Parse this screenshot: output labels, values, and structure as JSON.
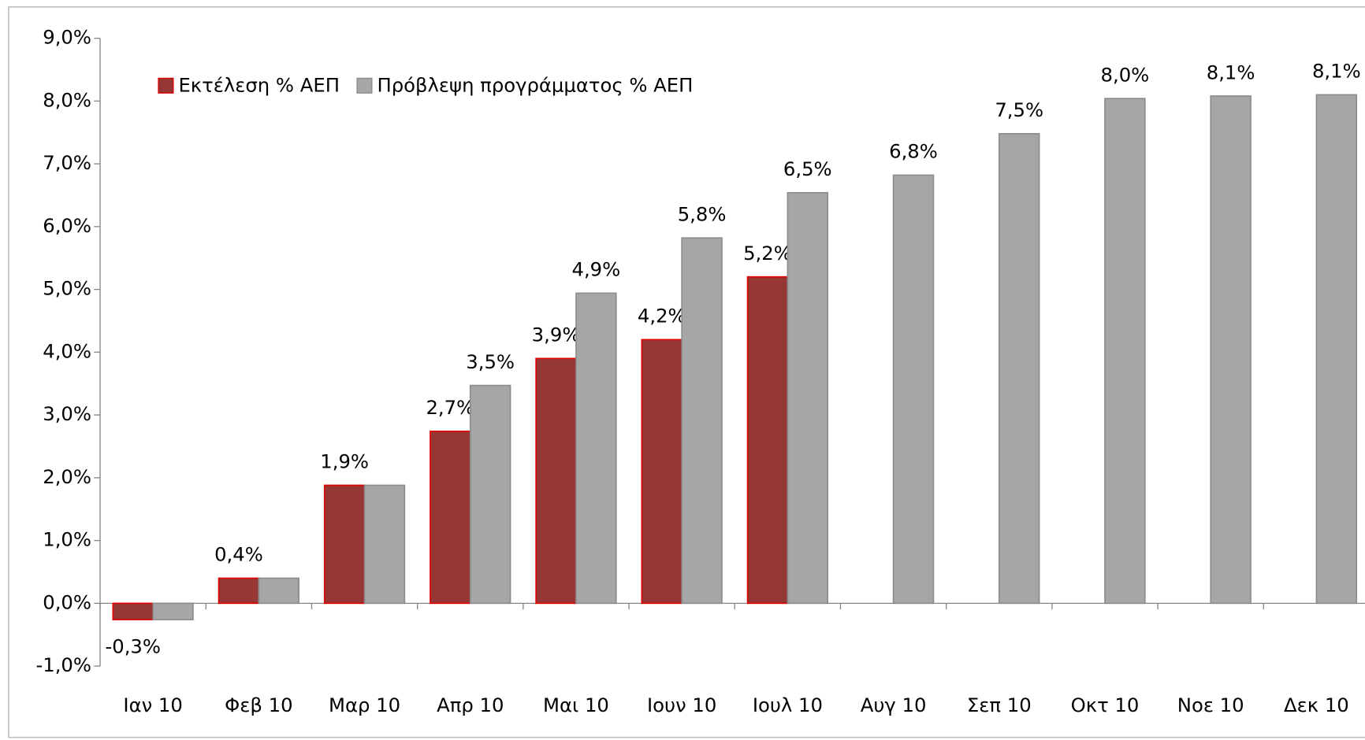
{
  "chart_data": {
    "type": "bar",
    "categories": [
      "Ιαν 10",
      "Φεβ 10",
      "Μαρ 10",
      "Απρ 10",
      "Μαι 10",
      "Ιουν 10",
      "Ιουλ 10",
      "Αυγ 10",
      "Σεπ 10",
      "Οκτ 10",
      "Νοε 10",
      "Δεκ 10"
    ],
    "series": [
      {
        "name": "Εκτέλεση % ΑΕΠ",
        "color": "#953735",
        "stroke": "#e00000",
        "values": [
          -0.26,
          0.4,
          1.88,
          2.74,
          3.9,
          4.2,
          5.2,
          null,
          null,
          null,
          null,
          null
        ],
        "value_labels": [
          "-0,3%",
          "0,4%",
          "1,9%",
          "2,7%",
          "3,9%",
          "4,2%",
          "5,2%",
          null,
          null,
          null,
          null,
          null
        ]
      },
      {
        "name": "Πρόβλεψη προγράμματος % ΑΕΠ",
        "color": "#a6a6a6",
        "stroke": "#8c8c8c",
        "values": [
          -0.26,
          0.4,
          1.88,
          3.47,
          4.94,
          5.82,
          6.54,
          6.82,
          7.48,
          8.04,
          8.08,
          8.1
        ],
        "value_labels": [
          null,
          null,
          null,
          "3,5%",
          "4,9%",
          "5,8%",
          "6,5%",
          "6,8%",
          "7,5%",
          "8,0%",
          "8,1%",
          "8,1%"
        ]
      }
    ],
    "ylim": [
      -1,
      9
    ],
    "yticks": [
      {
        "value": -1,
        "label": "-1,0%"
      },
      {
        "value": 0,
        "label": "0,0%"
      },
      {
        "value": 1,
        "label": "1,0%"
      },
      {
        "value": 2,
        "label": "2,0%"
      },
      {
        "value": 3,
        "label": "3,0%"
      },
      {
        "value": 4,
        "label": "4,0%"
      },
      {
        "value": 5,
        "label": "5,0%"
      },
      {
        "value": 6,
        "label": "6,0%"
      },
      {
        "value": 7,
        "label": "7,0%"
      },
      {
        "value": 8,
        "label": "8,0%"
      },
      {
        "value": 9,
        "label": "9,0%"
      }
    ],
    "grid": false,
    "legend": "top-left"
  }
}
